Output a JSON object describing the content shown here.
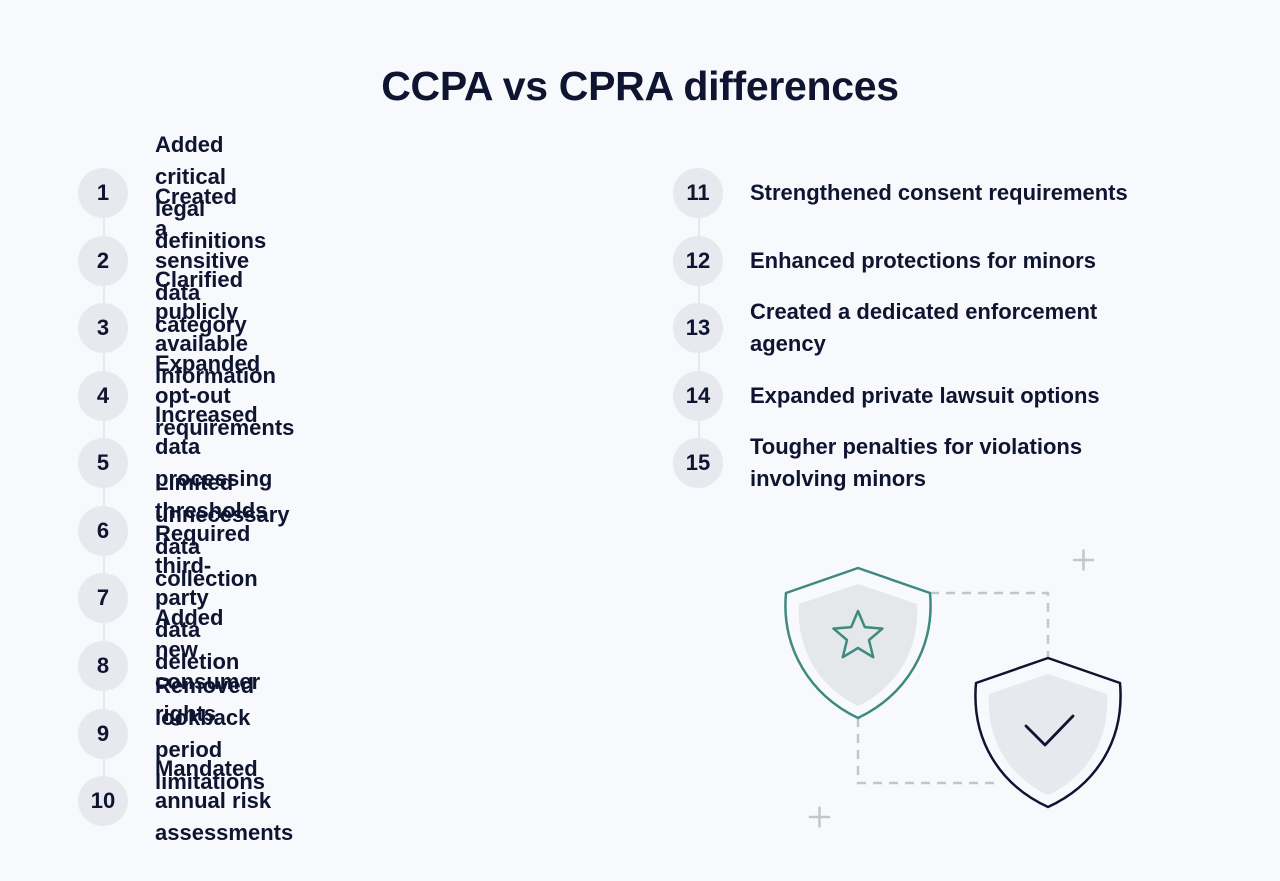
{
  "title": "CCPA vs CPRA differences",
  "left_items": [
    {
      "number": "1",
      "text": "Added critical legal definitions"
    },
    {
      "number": "2",
      "text": "Created a sensitive data category"
    },
    {
      "number": "3",
      "text": "Clarified publicly available information"
    },
    {
      "number": "4",
      "text": "Expanded opt-out requirements"
    },
    {
      "number": "5",
      "text": "Increased data processing thresholds"
    },
    {
      "number": "6",
      "text": "Limited unnecessary data collection"
    },
    {
      "number": "7",
      "text": "Required third-party data deletion"
    },
    {
      "number": "8",
      "text": "Added new consumer rights"
    },
    {
      "number": "9",
      "text": "Removed lookback period limitations"
    },
    {
      "number": "10",
      "text": "Mandated annual risk assessments"
    }
  ],
  "right_items": [
    {
      "number": "11",
      "text": "Strengthened consent requirements"
    },
    {
      "number": "12",
      "text": "Enhanced protections for minors"
    },
    {
      "number": "13",
      "text": "Created a dedicated enforcement agency"
    },
    {
      "number": "14",
      "text": "Expanded private lawsuit options"
    },
    {
      "number": "15",
      "text": "Tougher penalties for violations involving minors"
    }
  ],
  "colors": {
    "text": "#0f1430",
    "badge_bg": "#e7e9ef",
    "shield_star_stroke": "#3f8a80",
    "shield_check_stroke": "#0f1430",
    "dashed": "#c4c6cc"
  },
  "illustration": {
    "shield_1_icon": "star-icon",
    "shield_2_icon": "check-icon"
  }
}
